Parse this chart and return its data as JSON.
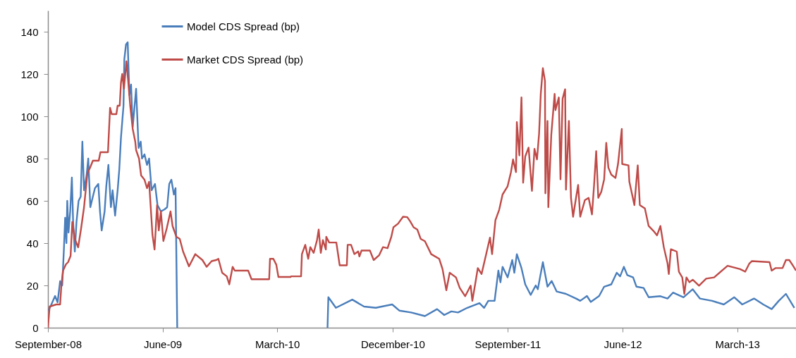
{
  "chart_data": {
    "type": "line",
    "xlim": [
      "2008-09-01",
      "2013-07-19"
    ],
    "ylim": [
      0,
      150
    ],
    "xticks": [
      {
        "value": "2008-09-01",
        "label": "September-08"
      },
      {
        "value": "2009-06-01",
        "label": "June-09"
      },
      {
        "value": "2010-03-01",
        "label": "March-10"
      },
      {
        "value": "2010-12-01",
        "label": "December-10"
      },
      {
        "value": "2011-09-01",
        "label": "September-11"
      },
      {
        "value": "2012-06-01",
        "label": "June-12"
      },
      {
        "value": "2013-03-01",
        "label": "March-13"
      }
    ],
    "yticks": [
      0,
      20,
      40,
      60,
      80,
      100,
      120,
      140
    ],
    "legend": "top left",
    "series": [
      {
        "name": "Model CDS Spread (bp)",
        "color": "#4a7ebb",
        "x": [
          "2008-09-01",
          "2008-09-07",
          "2008-09-18",
          "2008-09-24",
          "2008-09-30",
          "2008-10-05",
          "2008-10-09",
          "2008-10-12",
          "2008-10-15",
          "2008-10-17",
          "2008-10-20",
          "2008-10-24",
          "2008-10-28",
          "2008-10-31",
          "2008-11-04",
          "2008-11-08",
          "2008-11-13",
          "2008-11-18",
          "2008-11-22",
          "2008-11-26",
          "2008-12-02",
          "2008-12-06",
          "2008-12-11",
          "2008-12-17",
          "2008-12-22",
          "2008-12-30",
          "2009-01-03",
          "2009-01-07",
          "2009-01-14",
          "2009-01-18",
          "2009-01-23",
          "2009-01-29",
          "2009-02-02",
          "2009-02-08",
          "2009-02-14",
          "2009-02-18",
          "2009-02-22",
          "2009-02-28",
          "2009-03-02",
          "2009-03-06",
          "2009-03-10",
          "2009-03-14",
          "2009-03-18",
          "2009-03-22",
          "2009-03-30",
          "2009-04-05",
          "2009-04-10",
          "2009-04-13",
          "2009-04-19",
          "2009-04-25",
          "2009-04-30",
          "2009-05-06",
          "2009-05-14",
          "2009-05-20",
          "2009-05-28",
          "2009-06-06",
          "2009-06-12",
          "2009-06-17",
          "2009-06-22",
          "2009-06-28",
          "2009-07-02",
          "2009-07-06",
          "2010-01-01",
          "2010-06-29",
          "2010-07-01",
          "2010-07-19",
          "2010-08-27",
          "2010-09-24",
          "2010-10-22",
          "2010-11-30",
          "2010-12-17",
          "2011-01-14",
          "2011-02-16",
          "2011-03-17",
          "2011-04-03",
          "2011-04-20",
          "2011-05-06",
          "2011-05-28",
          "2011-06-26",
          "2011-07-07",
          "2011-07-17",
          "2011-08-01",
          "2011-08-10",
          "2011-08-15",
          "2011-08-20",
          "2011-09-01",
          "2011-09-12",
          "2011-09-17",
          "2011-09-23",
          "2011-10-04",
          "2011-10-13",
          "2011-10-26",
          "2011-11-07",
          "2011-11-12",
          "2011-11-24",
          "2011-12-05",
          "2011-12-15",
          "2011-12-27",
          "2012-01-18",
          "2012-02-11",
          "2012-02-21",
          "2012-03-08",
          "2012-03-17",
          "2012-04-06",
          "2012-04-18",
          "2012-05-05",
          "2012-05-18",
          "2012-05-26",
          "2012-06-04",
          "2012-06-12",
          "2012-06-26",
          "2012-07-04",
          "2012-07-21",
          "2012-08-02",
          "2012-08-30",
          "2012-09-16",
          "2012-09-29",
          "2012-10-24",
          "2012-11-15",
          "2012-12-02",
          "2012-12-31",
          "2013-01-28",
          "2013-02-22",
          "2013-03-13",
          "2013-04-10",
          "2013-05-02",
          "2013-05-22",
          "2013-06-08",
          "2013-06-25",
          "2013-07-15"
        ],
        "values": [
          8,
          10,
          15,
          12,
          22,
          20,
          37,
          52,
          40,
          60,
          45,
          55,
          71,
          50,
          36,
          50,
          60,
          62,
          88,
          65,
          72,
          80,
          57,
          62,
          66,
          68,
          55,
          46,
          55,
          67,
          77,
          57,
          65,
          53,
          65,
          75,
          90,
          105,
          127,
          134,
          135,
          110,
          115,
          95,
          113,
          85,
          88,
          80,
          82,
          77,
          80,
          65,
          68,
          58,
          55,
          56,
          57,
          68,
          70,
          63,
          66,
          0,
          null,
          0,
          14.4,
          9.4,
          13.3,
          10,
          9.4,
          11,
          8.1,
          7.2,
          5.5,
          8.8,
          6,
          7.7,
          7.2,
          9.4,
          11.6,
          9.4,
          12.7,
          12.7,
          27,
          21.5,
          28.8,
          23.8,
          32,
          26,
          34.8,
          28.2,
          20.5,
          15.5,
          20,
          18.2,
          31,
          19.4,
          22.1,
          17.1,
          16,
          13.8,
          12.7,
          15,
          12.2,
          15,
          19.4,
          20.5,
          26,
          24.3,
          28.8,
          24.9,
          23.8,
          19.4,
          18.8,
          14.4,
          14.9,
          13.8,
          16.6,
          14.4,
          18.2,
          13.8,
          12.7,
          11,
          14.4,
          11,
          13.8,
          11,
          8.8,
          12.7,
          16,
          9.4
        ]
      },
      {
        "name": "Market CDS Spread (bp)",
        "color": "#be4b48",
        "x": [
          "2008-09-01",
          "2008-09-05",
          "2008-09-21",
          "2008-09-30",
          "2008-10-03",
          "2008-10-07",
          "2008-10-14",
          "2008-10-19",
          "2008-10-25",
          "2008-10-29",
          "2008-11-04",
          "2008-11-12",
          "2008-11-19",
          "2008-11-26",
          "2008-12-04",
          "2008-12-11",
          "2008-12-17",
          "2008-12-31",
          "2009-01-04",
          "2009-01-22",
          "2009-01-27",
          "2009-01-31",
          "2009-02-11",
          "2009-02-14",
          "2009-02-19",
          "2009-02-22",
          "2009-02-25",
          "2009-03-01",
          "2009-03-07",
          "2009-03-11",
          "2009-03-16",
          "2009-03-22",
          "2009-03-28",
          "2009-03-30",
          "2009-04-06",
          "2009-04-11",
          "2009-04-19",
          "2009-04-25",
          "2009-04-30",
          "2009-05-08",
          "2009-05-13",
          "2009-05-19",
          "2009-05-23",
          "2009-05-28",
          "2009-06-03",
          "2009-06-11",
          "2009-06-20",
          "2009-06-25",
          "2009-07-04",
          "2009-07-12",
          "2009-07-20",
          "2009-08-03",
          "2009-08-18",
          "2009-09-04",
          "2009-09-14",
          "2009-09-26",
          "2009-10-07",
          "2009-10-12",
          "2009-10-21",
          "2009-11-01",
          "2009-11-07",
          "2009-11-15",
          "2009-11-20",
          "2009-12-22",
          "2009-12-30",
          "2010-02-10",
          "2010-02-12",
          "2010-02-20",
          "2010-02-27",
          "2010-03-04",
          "2010-04-02",
          "2010-04-03",
          "2010-04-27",
          "2010-04-29",
          "2010-05-07",
          "2010-05-14",
          "2010-05-19",
          "2010-05-27",
          "2010-06-04",
          "2010-06-08",
          "2010-06-13",
          "2010-06-18",
          "2010-06-25",
          "2010-06-26",
          "2010-07-03",
          "2010-07-20",
          "2010-07-28",
          "2010-08-14",
          "2010-08-16",
          "2010-08-24",
          "2010-09-01",
          "2010-09-10",
          "2010-09-13",
          "2010-09-18",
          "2010-10-08",
          "2010-10-17",
          "2010-10-30",
          "2010-11-08",
          "2010-11-19",
          "2010-11-28",
          "2010-12-03",
          "2010-12-14",
          "2010-12-26",
          "2011-01-05",
          "2011-01-12",
          "2011-01-20",
          "2011-01-29",
          "2011-02-06",
          "2011-02-16",
          "2011-03-03",
          "2011-03-22",
          "2011-03-30",
          "2011-04-08",
          "2011-04-16",
          "2011-05-01",
          "2011-05-10",
          "2011-05-23",
          "2011-06-05",
          "2011-06-09",
          "2011-06-17",
          "2011-06-22",
          "2011-07-01",
          "2011-07-12",
          "2011-07-21",
          "2011-07-26",
          "2011-08-03",
          "2011-08-12",
          "2011-08-20",
          "2011-09-01",
          "2011-09-09",
          "2011-09-14",
          "2011-09-21",
          "2011-09-23",
          "2011-09-29",
          "2011-10-04",
          "2011-10-08",
          "2011-10-13",
          "2011-10-21",
          "2011-10-29",
          "2011-11-04",
          "2011-11-10",
          "2011-11-15",
          "2011-11-19",
          "2011-11-24",
          "2011-11-29",
          "2011-11-30",
          "2011-12-05",
          "2011-12-07",
          "2011-12-14",
          "2011-12-22",
          "2011-12-24",
          "2012-01-01",
          "2012-01-05",
          "2012-01-10",
          "2012-01-16",
          "2012-01-18",
          "2012-01-25",
          "2012-01-30",
          "2012-02-04",
          "2012-02-11",
          "2012-02-16",
          "2012-02-21",
          "2012-03-03",
          "2012-03-12",
          "2012-03-20",
          "2012-03-25",
          "2012-03-30",
          "2012-04-04",
          "2012-04-11",
          "2012-04-18",
          "2012-04-23",
          "2012-04-28",
          "2012-05-05",
          "2012-05-15",
          "2012-05-21",
          "2012-05-30",
          "2012-05-31",
          "2012-06-15",
          "2012-06-17",
          "2012-06-29",
          "2012-07-07",
          "2012-07-12",
          "2012-07-24",
          "2012-08-02",
          "2012-08-13",
          "2012-08-22",
          "2012-08-30",
          "2012-09-07",
          "2012-09-16",
          "2012-09-19",
          "2012-09-24",
          "2012-10-08",
          "2012-10-13",
          "2012-10-21",
          "2012-10-26",
          "2012-10-31",
          "2012-11-07",
          "2012-11-15",
          "2012-11-30",
          "2012-12-17",
          "2013-01-05",
          "2013-02-06",
          "2013-03-08",
          "2013-03-20",
          "2013-03-30",
          "2013-04-05",
          "2013-05-17",
          "2013-05-22",
          "2013-05-31",
          "2013-06-17",
          "2013-06-25",
          "2013-07-03",
          "2013-07-12",
          "2013-07-19"
        ],
        "values": [
          0,
          10,
          11,
          11,
          20,
          27,
          30,
          31,
          34,
          50,
          42,
          38,
          47,
          57,
          73,
          76,
          79,
          79,
          83,
          83,
          104,
          101,
          101,
          105,
          105,
          116,
          120,
          113,
          126,
          117,
          105,
          94,
          88,
          84,
          80,
          72,
          70,
          66,
          69,
          44,
          37,
          58,
          46,
          55,
          41,
          47,
          55,
          48,
          43,
          42,
          36,
          29,
          34.8,
          32,
          28.8,
          31.5,
          32,
          32.6,
          26,
          24.3,
          20.5,
          28.8,
          27,
          27,
          22.9,
          22.9,
          32.6,
          32.6,
          29.8,
          24,
          24,
          24.3,
          24.3,
          34.8,
          39.2,
          32.6,
          38.1,
          35.4,
          41.4,
          46.4,
          35.4,
          41.4,
          37,
          43,
          40.3,
          40.3,
          29.5,
          29.5,
          39.2,
          39.2,
          34.8,
          36.1,
          33.7,
          36.5,
          36.5,
          32,
          34.3,
          38.1,
          37.6,
          43,
          47.5,
          49.2,
          52.5,
          52.3,
          50.3,
          47.5,
          46.4,
          42,
          40.9,
          34.8,
          32.6,
          27.7,
          17.7,
          26,
          23.8,
          18.8,
          14.9,
          19.9,
          12.7,
          22.1,
          28.2,
          25.4,
          34.8,
          42.6,
          34.8,
          50.9,
          55.8,
          63,
          66.9,
          73.6,
          79.6,
          73.6,
          97.3,
          81.5,
          108.9,
          68.6,
          81,
          85.2,
          64.7,
          84.6,
          79.6,
          91.8,
          110.6,
          122.8,
          116.7,
          63.6,
          97.8,
          57,
          91.2,
          110.6,
          102.9,
          108.9,
          70.2,
          108.3,
          112.8,
          65.3,
          97.8,
          61.4,
          52.5,
          61.4,
          67.5,
          52.5,
          60.3,
          61.4,
          53.6,
          67.5,
          83.5,
          61.4,
          64.2,
          70.2,
          87.4,
          75.7,
          72.4,
          70.8,
          77.4,
          94,
          77.4,
          76.8,
          69.1,
          58,
          76.8,
          58,
          56.4,
          48.1,
          45.9,
          43.7,
          48.1,
          38.2,
          30.4,
          25.4,
          37.1,
          36,
          26.5,
          23.8,
          16,
          23.8,
          21.5,
          22.7,
          19.9,
          23.2,
          23.8,
          29.3,
          27.7,
          26.5,
          30.4,
          31.5,
          31,
          27,
          28.2,
          28.2,
          32,
          32,
          29.3,
          27
        ]
      }
    ]
  }
}
